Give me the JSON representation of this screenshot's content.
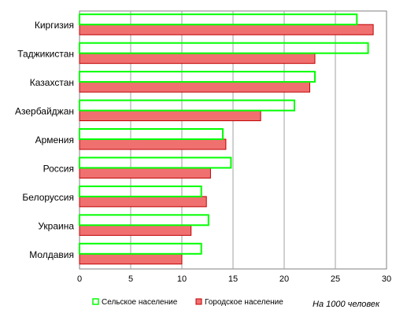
{
  "chart_data": {
    "type": "bar",
    "orientation": "horizontal",
    "categories": [
      "Киргизия",
      "Таджикистан",
      "Казахстан",
      "Азербайджан",
      "Армения",
      "Россия",
      "Белоруссия",
      "Украина",
      "Молдавия"
    ],
    "series": [
      {
        "name": "Сельское население",
        "color": "#00ff00",
        "style": "outline",
        "values": [
          27.1,
          28.2,
          23.0,
          21.0,
          14.0,
          14.8,
          11.9,
          12.6,
          11.9
        ]
      },
      {
        "name": "Городское население",
        "color": "#f07070",
        "style": "filled",
        "values": [
          28.7,
          23.0,
          22.5,
          17.7,
          14.3,
          12.8,
          12.4,
          10.9,
          10.0
        ]
      }
    ],
    "xlim": [
      0,
      30
    ],
    "xticks": [
      "0",
      "5",
      "10",
      "15",
      "20",
      "25",
      "30"
    ],
    "grid": "vertical",
    "legend_position": "bottom",
    "note": "На 1000 человек",
    "title": "",
    "xlabel": "",
    "ylabel": ""
  }
}
